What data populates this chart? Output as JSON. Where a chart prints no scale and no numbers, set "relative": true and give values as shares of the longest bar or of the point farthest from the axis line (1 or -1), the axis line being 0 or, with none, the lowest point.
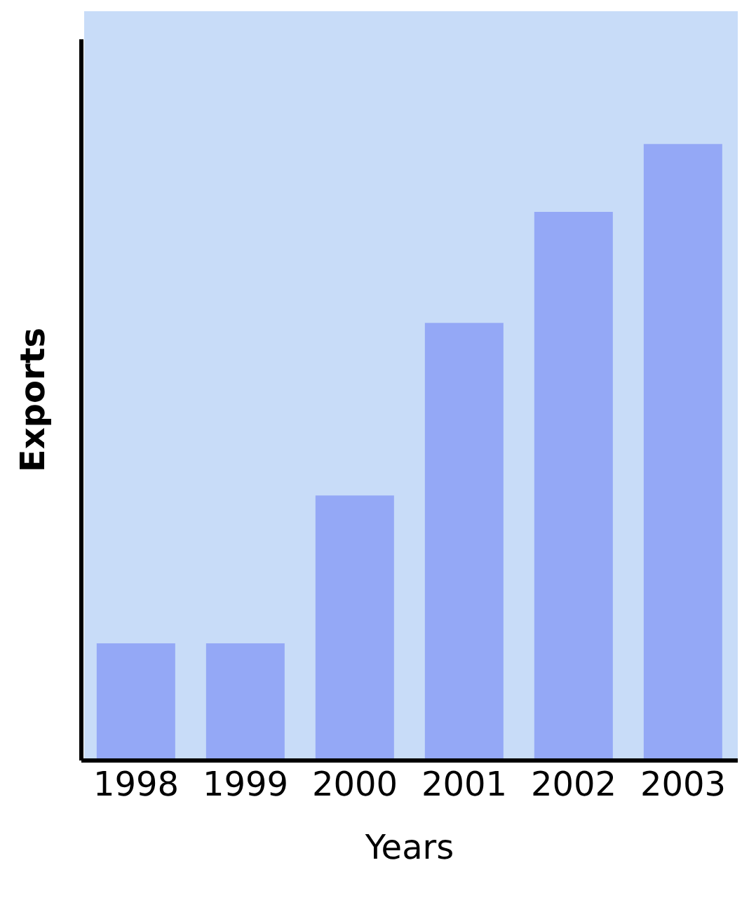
{
  "chart_data": {
    "type": "bar",
    "relative": true,
    "xlabel": "Years",
    "ylabel": "Exports",
    "categories": [
      "1998",
      "1999",
      "2000",
      "2001",
      "2002",
      "2003"
    ],
    "values": [
      0.19,
      0.19,
      0.43,
      0.71,
      0.89,
      1
    ],
    "color": "#94a8f6"
  }
}
